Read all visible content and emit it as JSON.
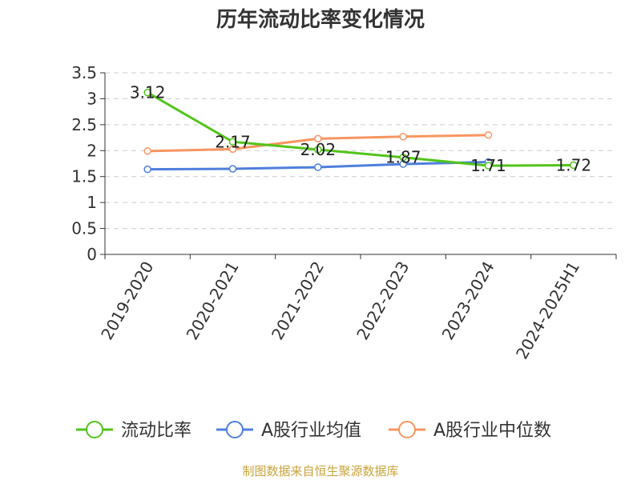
{
  "chart_data": {
    "type": "line",
    "title": "历年流动比率变化情况",
    "categories": [
      "2019-2020",
      "2020-2021",
      "2021-2022",
      "2022-2023",
      "2023-2024",
      "2024-2025H1"
    ],
    "ylim": [
      0,
      3.5
    ],
    "yticks": [
      "0",
      "0.5",
      "1",
      "1.5",
      "2",
      "2.5",
      "3",
      "3.5"
    ],
    "grid": true,
    "legend_position": "bottom",
    "series": [
      {
        "name": "流动比率",
        "color": "#52c41a",
        "values": [
          3.12,
          2.17,
          2.02,
          1.87,
          1.71,
          1.72
        ],
        "labels": [
          "3.12",
          "2.17",
          "2.02",
          "1.87",
          "1.71",
          "1.72"
        ]
      },
      {
        "name": "A股行业均值",
        "color": "#4e7fdc",
        "values": [
          1.64,
          1.65,
          1.68,
          1.74,
          1.78,
          null
        ],
        "labels": []
      },
      {
        "name": "A股行业中位数",
        "color": "#f79560",
        "values": [
          1.99,
          2.03,
          2.23,
          2.27,
          2.3,
          null
        ],
        "labels": []
      }
    ]
  },
  "source_note": "制图数据来自恒生聚源数据库"
}
